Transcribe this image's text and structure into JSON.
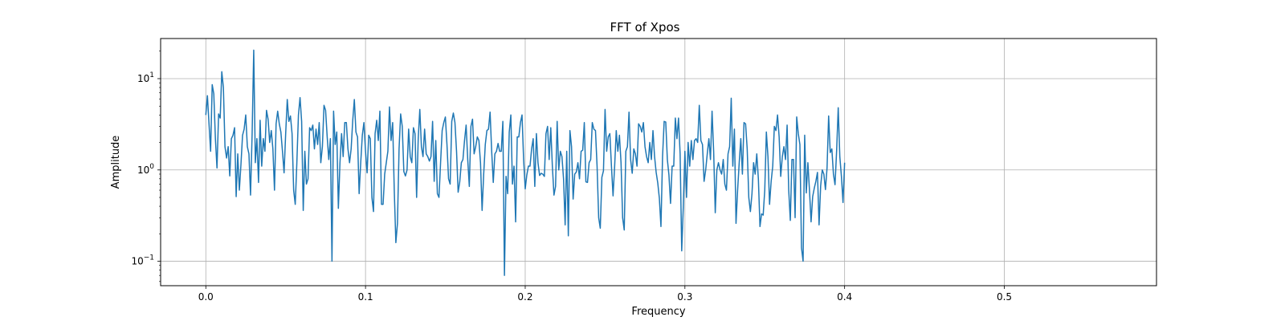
{
  "chart_data": {
    "type": "line",
    "title": "FFT of Xpos",
    "xlabel": "Frequency",
    "ylabel": "Amplitude",
    "xlim": [
      -0.0283,
      0.5953
    ],
    "ylim": [
      0.054,
      27.5
    ],
    "yscale": "log",
    "grid": true,
    "x_ticks": [
      {
        "value": 0.0,
        "label": "0.0"
      },
      {
        "value": 0.1,
        "label": "0.1"
      },
      {
        "value": 0.2,
        "label": "0.2"
      },
      {
        "value": 0.3,
        "label": "0.3"
      },
      {
        "value": 0.4,
        "label": "0.4"
      },
      {
        "value": 0.5,
        "label": "0.5"
      }
    ],
    "y_ticks": [
      {
        "value": 0.1,
        "base": "10",
        "exponent": "−1"
      },
      {
        "value": 1,
        "base": "10",
        "exponent": "0"
      },
      {
        "value": 10,
        "base": "10",
        "exponent": "1"
      }
    ],
    "series": [
      {
        "color": "#1f77b4",
        "x_start": 0.0,
        "x_step": 0.001,
        "y": [
          4.0,
          6.5,
          3.2,
          1.6,
          8.6,
          6.8,
          2.2,
          1.05,
          4.1,
          3.7,
          11.9,
          8.0,
          1.8,
          1.35,
          1.8,
          0.86,
          2.2,
          2.4,
          2.9,
          0.51,
          1.5,
          0.6,
          1.15,
          2.4,
          2.8,
          4.0,
          1.8,
          1.5,
          0.53,
          2.5,
          20.5,
          1.2,
          2.2,
          0.73,
          3.5,
          1.1,
          2.2,
          1.6,
          4.5,
          3.6,
          2.0,
          2.7,
          1.7,
          0.6,
          3.2,
          4.4,
          3.2,
          2.6,
          1.6,
          0.93,
          2.5,
          5.9,
          3.4,
          3.9,
          2.5,
          0.6,
          0.42,
          1.2,
          4.0,
          6.2,
          3.4,
          0.36,
          1.6,
          0.7,
          0.8,
          2.9,
          2.7,
          3.1,
          1.7,
          2.8,
          1.9,
          3.3,
          1.2,
          1.8,
          5.1,
          4.5,
          2.3,
          1.3,
          2.2,
          0.1,
          4.4,
          1.9,
          2.6,
          0.38,
          1.2,
          2.5,
          1.4,
          3.3,
          3.3,
          1.7,
          1.2,
          1.7,
          3.5,
          5.9,
          2.6,
          2.3,
          0.55,
          1.2,
          2.4,
          3.3,
          1.6,
          0.93,
          2.4,
          2.2,
          0.5,
          0.35,
          2.5,
          3.5,
          2.1,
          4.4,
          0.42,
          0.42,
          0.9,
          1.2,
          1.6,
          4.9,
          2.1,
          3.3,
          0.6,
          0.16,
          0.26,
          1.7,
          4.1,
          3.0,
          0.96,
          0.86,
          1.0,
          2.8,
          1.4,
          1.2,
          2.9,
          2.5,
          0.5,
          2.2,
          4.6,
          1.8,
          1.4,
          2.8,
          1.5,
          1.4,
          1.25,
          1.4,
          3.4,
          0.75,
          2.1,
          0.55,
          0.5,
          1.2,
          2.7,
          3.3,
          3.8,
          1.9,
          0.8,
          0.7,
          3.4,
          4.2,
          3.3,
          1.6,
          0.57,
          0.74,
          1.2,
          1.3,
          2.1,
          3.1,
          1.3,
          0.66,
          3.0,
          3.6,
          1.5,
          1.8,
          2.3,
          2.1,
          1.2,
          0.36,
          0.9,
          1.9,
          2.7,
          2.8,
          4.3,
          1.6,
          0.73,
          1.5,
          1.6,
          1.95,
          1.6,
          1.6,
          3.4,
          0.07,
          0.85,
          0.55,
          2.6,
          4.0,
          0.7,
          1.1,
          0.27,
          2.3,
          2.3,
          3.3,
          4.0,
          1.3,
          0.62,
          0.88,
          1.1,
          1.1,
          1.7,
          2.2,
          0.66,
          2.5,
          1.2,
          0.87,
          0.92,
          0.9,
          0.85,
          2.5,
          3.0,
          1.3,
          2.9,
          1.1,
          0.53,
          0.66,
          3.4,
          1.0,
          1.6,
          1.4,
          0.8,
          0.25,
          1.6,
          0.19,
          2.7,
          1.8,
          0.48,
          0.9,
          0.95,
          1.2,
          0.8,
          1.6,
          1.65,
          3.3,
          0.74,
          0.73,
          1.2,
          1.3,
          3.3,
          2.8,
          2.7,
          1.1,
          0.3,
          0.23,
          0.83,
          0.98,
          4.6,
          1.6,
          2.3,
          2.5,
          1.1,
          0.52,
          1.1,
          2.7,
          1.6,
          2.4,
          1.2,
          0.3,
          0.22,
          1.6,
          1.8,
          4.3,
          1.3,
          0.92,
          1.7,
          1.5,
          1.1,
          3.2,
          3.0,
          2.6,
          3.3,
          1.8,
          1.4,
          1.2,
          2.0,
          1.3,
          2.7,
          1.4,
          0.94,
          0.72,
          0.49,
          0.24,
          1.4,
          3.4,
          3.35,
          1.3,
          0.88,
          0.43,
          1.1,
          1.1,
          3.7,
          2.2,
          3.7,
          1.5,
          0.13,
          0.4,
          1.6,
          0.5,
          2.0,
          1.1,
          2.1,
          1.3,
          2.1,
          2.2,
          2.0,
          5.1,
          2.1,
          1.9,
          0.75,
          1.0,
          1.5,
          2.2,
          1.3,
          4.4,
          1.6,
          0.34,
          1.0,
          1.2,
          1.0,
          0.9,
          1.3,
          0.7,
          0.6,
          1.5,
          1.8,
          6.1,
          1.1,
          2.8,
          0.26,
          0.6,
          1.2,
          2.2,
          0.9,
          3.3,
          3.2,
          1.7,
          0.5,
          0.35,
          0.55,
          1.2,
          0.9,
          1.5,
          0.8,
          0.24,
          0.33,
          0.32,
          0.6,
          2.6,
          1.4,
          0.42,
          0.75,
          1.1,
          3.0,
          2.7,
          4.0,
          2.3,
          0.85,
          1.4,
          1.8,
          1.3,
          3.1,
          0.6,
          0.28,
          1.3,
          1.3,
          0.3,
          3.8,
          2.5,
          1.9,
          0.14,
          0.1,
          2.4,
          0.56,
          1.2,
          0.6,
          0.27,
          0.51,
          0.63,
          0.75,
          0.94,
          0.25,
          0.67,
          1.0,
          0.9,
          0.61,
          1.05,
          3.9,
          1.55,
          1.7,
          0.9,
          0.69,
          1.62,
          4.8,
          1.4,
          0.85,
          0.44,
          1.2
        ]
      }
    ]
  }
}
